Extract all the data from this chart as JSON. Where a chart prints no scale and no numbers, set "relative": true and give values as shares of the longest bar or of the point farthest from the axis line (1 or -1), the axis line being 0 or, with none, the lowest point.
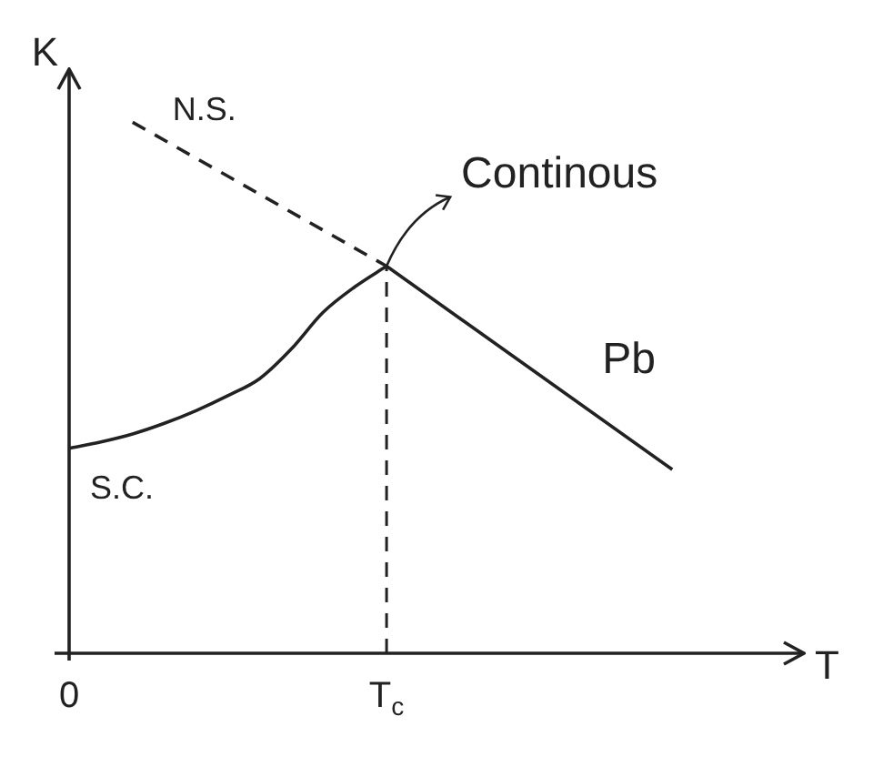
{
  "chart_data": {
    "type": "line",
    "relative": true,
    "xlabel": "T",
    "ylabel": "K",
    "categories": [
      "0",
      null,
      null,
      null,
      null,
      null,
      null,
      null,
      null,
      null,
      "T$_{c}$",
      null,
      null,
      null,
      null,
      null,
      null,
      null,
      null,
      null,
      null,
      null,
      null
    ],
    "tick_labels": "x",
    "grid": false,
    "legend": false,
    "marker": "none",
    "series": [
      {
        "name": "N.S.",
        "color": "#222222",
        "line_style": "dashed",
        "values": [
          null,
          null,
          1,
          null,
          null,
          null,
          null,
          null,
          null,
          null,
          0.729,
          null,
          null,
          null,
          null,
          null,
          null,
          null,
          null,
          null,
          null,
          null,
          null
        ]
      },
      {
        "name": "S.C.",
        "color": "#222222",
        "line_style": "solid",
        "values": [
          0.386,
          0.398,
          0.413,
          0.433,
          0.457,
          0.485,
          0.517,
          0.573,
          0.642,
          0.69,
          0.729,
          null,
          null,
          null,
          null,
          null,
          null,
          null,
          null,
          null,
          null,
          null,
          null
        ]
      },
      {
        "color": "#222222",
        "line_style": "solid",
        "values": [
          null,
          null,
          null,
          null,
          null,
          null,
          null,
          null,
          null,
          null,
          0.729,
          null,
          null,
          null,
          null,
          null,
          null,
          null,
          null,
          0.346,
          null,
          null,
          null
        ]
      }
    ],
    "ref_lines": [
      {
        "axis": "x",
        "value": "T$_{c}$",
        "line_style": "dashed",
        "color": "#222222"
      }
    ],
    "annotations": [
      {
        "text": "Continous",
        "x": "T$_{c}$",
        "y": 0.729
      },
      "Pb"
    ]
  }
}
